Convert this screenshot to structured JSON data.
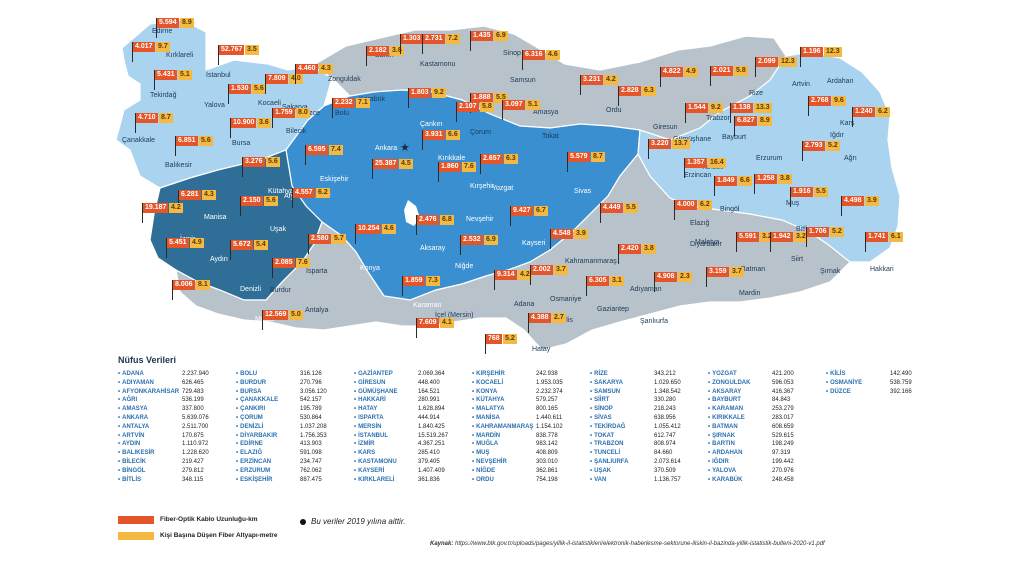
{
  "colors": {
    "dark_blue": "#2f6f97",
    "mid_blue": "#3a8fd0",
    "light_blue": "#a9d3ef",
    "grey": "#b8c2cb",
    "flag_orange": "#e5552a",
    "flag_yellow": "#f4b942"
  },
  "map": {
    "capital_label": "Ankara",
    "capital_icon": "star-icon",
    "provinces": [
      {
        "name": "Edirne",
        "region": "light_blue"
      },
      {
        "name": "Kırklareli",
        "region": "light_blue"
      },
      {
        "name": "İstanbul",
        "region": "light_blue"
      },
      {
        "name": "Tekirdağ",
        "region": "light_blue"
      },
      {
        "name": "Yalova",
        "region": "light_blue"
      },
      {
        "name": "Kocaeli",
        "region": "light_blue"
      },
      {
        "name": "Sakarya",
        "region": "light_blue"
      },
      {
        "name": "Bilecik",
        "region": "light_blue"
      },
      {
        "name": "Bursa",
        "region": "light_blue"
      },
      {
        "name": "Çanakkale",
        "region": "light_blue"
      },
      {
        "name": "Balıkesir",
        "region": "light_blue"
      },
      {
        "name": "Zonguldak",
        "region": "grey"
      },
      {
        "name": "Bartın",
        "region": "grey"
      },
      {
        "name": "Kastamonu",
        "region": "grey"
      },
      {
        "name": "Sinop",
        "region": "grey"
      },
      {
        "name": "Karabük",
        "region": "grey"
      },
      {
        "name": "Bolu",
        "region": "grey"
      },
      {
        "name": "Düzce",
        "region": "grey"
      },
      {
        "name": "Samsun",
        "region": "grey"
      },
      {
        "name": "Amasya",
        "region": "grey"
      },
      {
        "name": "Tokat",
        "region": "grey"
      },
      {
        "name": "Ordu",
        "region": "grey"
      },
      {
        "name": "Giresun",
        "region": "grey"
      },
      {
        "name": "Trabzon",
        "region": "grey"
      },
      {
        "name": "Rize",
        "region": "grey"
      },
      {
        "name": "Artvin",
        "region": "grey"
      },
      {
        "name": "Gümüşhane",
        "region": "grey"
      },
      {
        "name": "Bayburt",
        "region": "grey"
      },
      {
        "name": "Çorum",
        "region": "grey"
      },
      {
        "name": "Kütahya",
        "region": "dark_blue"
      },
      {
        "name": "Eskişehir",
        "region": "mid_blue"
      },
      {
        "name": "Ankara",
        "region": "mid_blue"
      },
      {
        "name": "Çankırı",
        "region": "mid_blue"
      },
      {
        "name": "Kırıkkale",
        "region": "mid_blue"
      },
      {
        "name": "Kırşehir",
        "region": "mid_blue"
      },
      {
        "name": "Yozgat",
        "region": "mid_blue"
      },
      {
        "name": "Sivas",
        "region": "mid_blue"
      },
      {
        "name": "Nevşehir",
        "region": "mid_blue"
      },
      {
        "name": "Kayseri",
        "region": "mid_blue"
      },
      {
        "name": "Aksaray",
        "region": "mid_blue"
      },
      {
        "name": "Niğde",
        "region": "mid_blue"
      },
      {
        "name": "Konya",
        "region": "mid_blue"
      },
      {
        "name": "Karaman",
        "region": "mid_blue"
      },
      {
        "name": "Manisa",
        "region": "dark_blue"
      },
      {
        "name": "Uşak",
        "region": "dark_blue"
      },
      {
        "name": "Afyonkarahisar",
        "region": "dark_blue"
      },
      {
        "name": "İzmir",
        "region": "dark_blue"
      },
      {
        "name": "Aydın",
        "region": "dark_blue"
      },
      {
        "name": "Denizli",
        "region": "dark_blue"
      },
      {
        "name": "Muğla",
        "region": "dark_blue"
      },
      {
        "name": "Isparta",
        "region": "grey"
      },
      {
        "name": "Burdur",
        "region": "grey"
      },
      {
        "name": "Antalya",
        "region": "grey"
      },
      {
        "name": "İçel (Mersin)",
        "region": "grey"
      },
      {
        "name": "Adana",
        "region": "grey"
      },
      {
        "name": "Osmaniye",
        "region": "grey"
      },
      {
        "name": "Hatay",
        "region": "grey"
      },
      {
        "name": "Kahramanmaraş",
        "region": "grey"
      },
      {
        "name": "Gaziantep",
        "region": "grey"
      },
      {
        "name": "Kilis",
        "region": "grey"
      },
      {
        "name": "Adıyaman",
        "region": "grey"
      },
      {
        "name": "Şanlıurfa",
        "region": "grey"
      },
      {
        "name": "Mardin",
        "region": "grey"
      },
      {
        "name": "Diyarbakır",
        "region": "grey"
      },
      {
        "name": "Batman",
        "region": "grey"
      },
      {
        "name": "Siirt",
        "region": "grey"
      },
      {
        "name": "Şırnak",
        "region": "grey"
      },
      {
        "name": "Hakkari",
        "region": "light_blue"
      },
      {
        "name": "Van",
        "region": "light_blue"
      },
      {
        "name": "Bitlis",
        "region": "light_blue"
      },
      {
        "name": "Muş",
        "region": "light_blue"
      },
      {
        "name": "Bingöl",
        "region": "light_blue"
      },
      {
        "name": "Elazığ",
        "region": "light_blue"
      },
      {
        "name": "Malatya",
        "region": "light_blue"
      },
      {
        "name": "Tunceli",
        "region": "light_blue"
      },
      {
        "name": "Erzincan",
        "region": "light_blue"
      },
      {
        "name": "Erzurum",
        "region": "light_blue"
      },
      {
        "name": "Ağrı",
        "region": "light_blue"
      },
      {
        "name": "Iğdır",
        "region": "light_blue"
      },
      {
        "name": "Kars",
        "region": "light_blue"
      },
      {
        "name": "Ardahan",
        "region": "light_blue"
      }
    ],
    "flags": [
      {
        "km": "5.594",
        "per": "8.9"
      },
      {
        "km": "4.017",
        "per": "9.7"
      },
      {
        "km": "52.767",
        "per": "3.5"
      },
      {
        "km": "5.431",
        "per": "5.1"
      },
      {
        "km": "1.530",
        "per": "5.6"
      },
      {
        "km": "7.809",
        "per": "4.0"
      },
      {
        "km": "4.460",
        "per": "4.3"
      },
      {
        "km": "1.759",
        "per": "8.0"
      },
      {
        "km": "10.900",
        "per": "3.6"
      },
      {
        "km": "4.710",
        "per": "8.7"
      },
      {
        "km": "6.851",
        "per": "5.6"
      },
      {
        "km": "2.182",
        "per": "3.6"
      },
      {
        "km": "1.303",
        "per": "6.9"
      },
      {
        "km": "2.731",
        "per": "7.2"
      },
      {
        "km": "1.435",
        "per": "6.9"
      },
      {
        "km": "2.232",
        "per": "7.1"
      },
      {
        "km": "1.803",
        "per": "9.2"
      },
      {
        "km": "6.316",
        "per": "4.6"
      },
      {
        "km": "1.888",
        "per": "5.5"
      },
      {
        "km": "3.097",
        "per": "5.1"
      },
      {
        "km": "3.231",
        "per": "4.2"
      },
      {
        "km": "2.828",
        "per": "6.3"
      },
      {
        "km": "4.822",
        "per": "4.9"
      },
      {
        "km": "2.021",
        "per": "5.8"
      },
      {
        "km": "2.099",
        "per": "12.3"
      },
      {
        "km": "1.196",
        "per": "12.3"
      },
      {
        "km": "1.544",
        "per": "9.2"
      },
      {
        "km": "1.138",
        "per": "13.3"
      },
      {
        "km": "2.107",
        "per": "5.8"
      },
      {
        "km": "3.276",
        "per": "5.6"
      },
      {
        "km": "6.595",
        "per": "7.4"
      },
      {
        "km": "25.387",
        "per": "4.5"
      },
      {
        "km": "3.931",
        "per": "6.6"
      },
      {
        "km": "1.860",
        "per": "7.6"
      },
      {
        "km": "2.657",
        "per": "6.3"
      },
      {
        "km": "5.579",
        "per": "8.7"
      },
      {
        "km": "6.281",
        "per": "4.3"
      },
      {
        "km": "2.150",
        "per": "5.6"
      },
      {
        "km": "4.557",
        "per": "6.2"
      },
      {
        "km": "19.187",
        "per": "4.2"
      },
      {
        "km": "5.451",
        "per": "4.9"
      },
      {
        "km": "5.672",
        "per": "5.4"
      },
      {
        "km": "8.006",
        "per": "8.1"
      },
      {
        "km": "2.580",
        "per": "5.7"
      },
      {
        "km": "2.085",
        "per": "7.6"
      },
      {
        "km": "12.569",
        "per": "5.0"
      },
      {
        "km": "10.254",
        "per": "4.6"
      },
      {
        "km": "2.476",
        "per": "6.8"
      },
      {
        "km": "2.532",
        "per": "6.9"
      },
      {
        "km": "9.427",
        "per": "6.7"
      },
      {
        "km": "1.859",
        "per": "7.3"
      },
      {
        "km": "7.609",
        "per": "4.1"
      },
      {
        "km": "4.548",
        "per": "3.9"
      },
      {
        "km": "9.314",
        "per": "4.2"
      },
      {
        "km": "2.002",
        "per": "3.7"
      },
      {
        "km": "4.388",
        "per": "2.7"
      },
      {
        "km": "768",
        "per": "5.2"
      },
      {
        "km": "6.305",
        "per": "3.1"
      },
      {
        "km": "2.420",
        "per": "3.8"
      },
      {
        "km": "4.908",
        "per": "2.3"
      },
      {
        "km": "4.449",
        "per": "5.5"
      },
      {
        "km": "4.000",
        "per": "6.2"
      },
      {
        "km": "1.357",
        "per": "16.4"
      },
      {
        "km": "3.220",
        "per": "13.7"
      },
      {
        "km": "6.827",
        "per": "8.9"
      },
      {
        "km": "2.768",
        "per": "9.6"
      },
      {
        "km": "1.240",
        "per": "6.2"
      },
      {
        "km": "2.793",
        "per": "5.2"
      },
      {
        "km": "1.849",
        "per": "6.6"
      },
      {
        "km": "1.258",
        "per": "3.8"
      },
      {
        "km": "1.916",
        "per": "5.5"
      },
      {
        "km": "4.498",
        "per": "3.9"
      },
      {
        "km": "5.591",
        "per": "3.2"
      },
      {
        "km": "1.942",
        "per": "3.2"
      },
      {
        "km": "1.706",
        "per": "5.2"
      },
      {
        "km": "1.741",
        "per": "6.1"
      },
      {
        "km": "3.159",
        "per": "3.7"
      }
    ]
  },
  "population": {
    "title": "Nüfus Verileri",
    "columns": [
      [
        {
          "name": "ADANA",
          "value": "2.237.940"
        },
        {
          "name": "ADIYAMAN",
          "value": "626.465"
        },
        {
          "name": "AFYONKARAHİSAR",
          "value": "729.483"
        },
        {
          "name": "AĞRI",
          "value": "536.199"
        },
        {
          "name": "AMASYA",
          "value": "337.800"
        },
        {
          "name": "ANKARA",
          "value": "5.639.076"
        },
        {
          "name": "ANTALYA",
          "value": "2.511.700"
        },
        {
          "name": "ARTVİN",
          "value": "170.875"
        },
        {
          "name": "AYDIN",
          "value": "1.110.972"
        },
        {
          "name": "BALIKESİR",
          "value": "1.228.620"
        },
        {
          "name": "BİLECİK",
          "value": "219.427"
        },
        {
          "name": "BİNGÖL",
          "value": "279.812"
        },
        {
          "name": "BİTLİS",
          "value": "348.115"
        }
      ],
      [
        {
          "name": "BOLU",
          "value": "316.126"
        },
        {
          "name": "BURDUR",
          "value": "270.796"
        },
        {
          "name": "BURSA",
          "value": "3.056.120"
        },
        {
          "name": "ÇANAKKALE",
          "value": "542.157"
        },
        {
          "name": "ÇANKIRI",
          "value": "195.789"
        },
        {
          "name": "ÇORUM",
          "value": "530.864"
        },
        {
          "name": "DENİZLİ",
          "value": "1.037.208"
        },
        {
          "name": "DİYARBAKIR",
          "value": "1.756.353"
        },
        {
          "name": "EDİRNE",
          "value": "413.903"
        },
        {
          "name": "ELAZIĞ",
          "value": "591.098"
        },
        {
          "name": "ERZİNCAN",
          "value": "234.747"
        },
        {
          "name": "ERZURUM",
          "value": "762.062"
        },
        {
          "name": "ESKİŞEHİR",
          "value": "887.475"
        }
      ],
      [
        {
          "name": "GAZİANTEP",
          "value": "2.069.364"
        },
        {
          "name": "GİRESUN",
          "value": "448.400"
        },
        {
          "name": "GÜMÜŞHANE",
          "value": "164.521"
        },
        {
          "name": "HAKKARİ",
          "value": "280.991"
        },
        {
          "name": "HATAY",
          "value": "1.628.894"
        },
        {
          "name": "ISPARTA",
          "value": "444.914"
        },
        {
          "name": "MERSİN",
          "value": "1.840.425"
        },
        {
          "name": "İSTANBUL",
          "value": "15.519.267"
        },
        {
          "name": "İZMİR",
          "value": "4.367.251"
        },
        {
          "name": "KARS",
          "value": "285.410"
        },
        {
          "name": "KASTAMONU",
          "value": "379.405"
        },
        {
          "name": "KAYSERİ",
          "value": "1.407.409"
        },
        {
          "name": "KIRKLARELİ",
          "value": "361.836"
        }
      ],
      [
        {
          "name": "KIRŞEHİR",
          "value": "242.938"
        },
        {
          "name": "KOCAELİ",
          "value": "1.953.035"
        },
        {
          "name": "KONYA",
          "value": "2.232.374"
        },
        {
          "name": "KÜTAHYA",
          "value": "579.257"
        },
        {
          "name": "MALATYA",
          "value": "800.165"
        },
        {
          "name": "MANİSA",
          "value": "1.440.611"
        },
        {
          "name": "KAHRAMANMARAŞ",
          "value": "1.154.102"
        },
        {
          "name": "MARDİN",
          "value": "838.778"
        },
        {
          "name": "MUĞLA",
          "value": "983.142"
        },
        {
          "name": "MUŞ",
          "value": "408.809"
        },
        {
          "name": "NEVŞEHİR",
          "value": "303.010"
        },
        {
          "name": "NİĞDE",
          "value": "362.861"
        },
        {
          "name": "ORDU",
          "value": "754.198"
        }
      ],
      [
        {
          "name": "RİZE",
          "value": "343.212"
        },
        {
          "name": "SAKARYA",
          "value": "1.029.650"
        },
        {
          "name": "SAMSUN",
          "value": "1.348.542"
        },
        {
          "name": "SİİRT",
          "value": "330.280"
        },
        {
          "name": "SİNOP",
          "value": "218.243"
        },
        {
          "name": "SİVAS",
          "value": "638.956"
        },
        {
          "name": "TEKİRDAĞ",
          "value": "1.055.412"
        },
        {
          "name": "TOKAT",
          "value": "612.747"
        },
        {
          "name": "TRABZON",
          "value": "808.974"
        },
        {
          "name": "TUNCELİ",
          "value": "84.660"
        },
        {
          "name": "ŞANLIURFA",
          "value": "2.073.614"
        },
        {
          "name": "UŞAK",
          "value": "370.509"
        },
        {
          "name": "VAN",
          "value": "1.136.757"
        }
      ],
      [
        {
          "name": "YOZGAT",
          "value": "421.200"
        },
        {
          "name": "ZONGULDAK",
          "value": "596.053"
        },
        {
          "name": "AKSARAY",
          "value": "416.367"
        },
        {
          "name": "BAYBURT",
          "value": "84.843"
        },
        {
          "name": "KARAMAN",
          "value": "253.279"
        },
        {
          "name": "KIRIKKALE",
          "value": "283.017"
        },
        {
          "name": "BATMAN",
          "value": "608.659"
        },
        {
          "name": "ŞIRNAK",
          "value": "529.615"
        },
        {
          "name": "BARTIN",
          "value": "198.249"
        },
        {
          "name": "ARDAHAN",
          "value": "97.319"
        },
        {
          "name": "IĞDIR",
          "value": "199.442"
        },
        {
          "name": "YALOVA",
          "value": "270.976"
        },
        {
          "name": "KARABÜK",
          "value": "248.458"
        }
      ],
      [
        {
          "name": "KİLİS",
          "value": "142.490"
        },
        {
          "name": "OSMANİYE",
          "value": "538.759"
        },
        {
          "name": "DÜZCE",
          "value": "392.166"
        }
      ]
    ]
  },
  "legend": {
    "items": [
      {
        "label": "Fiber-Optik Kablo Uzunluğu-km",
        "color": "#e5552a"
      },
      {
        "label": "Kişi Başına Düşen Fiber Altyapı-metre",
        "color": "#f4b942"
      }
    ]
  },
  "note": "Bu veriler 2019 yılına aittir.",
  "source": {
    "label": "Kaynak:",
    "url": "https://www.btk.gov.tr/uploads/pages/yillik-il-istatistikleri/elektronik-haberlesme-sektorune-iliskin-il-bazinda-yillik-istatistik-bulteni-2020-v1.pdf"
  }
}
